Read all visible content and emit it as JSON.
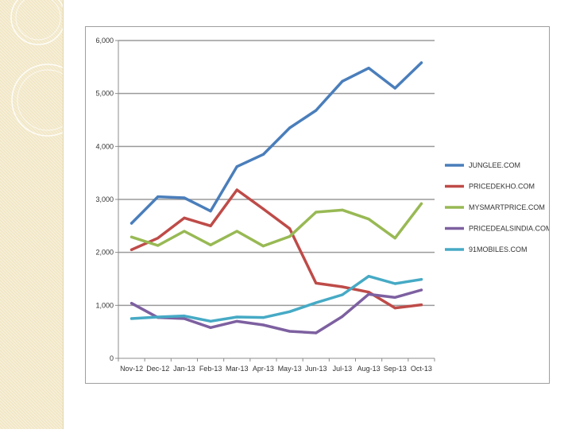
{
  "colors": {
    "junglee": "#4a7ebb",
    "pricedekho": "#be4b48",
    "mysmartprice": "#98b954",
    "pricedealsindia": "#7d60a0",
    "91mobiles": "#46aac5"
  },
  "chart_data": {
    "type": "line",
    "title": "",
    "xlabel": "",
    "ylabel": "",
    "ylim": [
      0,
      6000
    ],
    "yticks": [
      0,
      1000,
      2000,
      3000,
      4000,
      5000,
      6000
    ],
    "ytick_labels": [
      "0",
      "1,000",
      "2,000",
      "3,000",
      "4,000",
      "5,000",
      "6,000"
    ],
    "grid": true,
    "legend_position": "right",
    "categories": [
      "Nov-12",
      "Dec-12",
      "Jan-13",
      "Feb-13",
      "Mar-13",
      "Apr-13",
      "May-13",
      "Jun-13",
      "Jul-13",
      "Aug-13",
      "Sep-13",
      "Oct-13"
    ],
    "series": [
      {
        "name": "JUNGLEE.COM",
        "color": "#4a7ebb",
        "values": [
          2550,
          3050,
          3030,
          2780,
          3620,
          3850,
          4350,
          4680,
          5230,
          5480,
          5100,
          5580
        ]
      },
      {
        "name": "PRICEDEKHO.COM",
        "color": "#be4b48",
        "values": [
          2050,
          2270,
          2650,
          2500,
          3180,
          2820,
          2450,
          1420,
          1350,
          1250,
          950,
          1010
        ]
      },
      {
        "name": "MYSMARTPRICE.COM",
        "color": "#98b954",
        "values": [
          2290,
          2130,
          2400,
          2140,
          2400,
          2120,
          2300,
          2760,
          2800,
          2630,
          2270,
          2920
        ]
      },
      {
        "name": "PRICEDEALSINDIA.COM",
        "color": "#7d60a0",
        "values": [
          1040,
          770,
          750,
          580,
          700,
          630,
          510,
          480,
          790,
          1210,
          1150,
          1290
        ]
      },
      {
        "name": "91MOBILES.COM",
        "color": "#46aac5",
        "values": [
          750,
          780,
          800,
          700,
          780,
          770,
          880,
          1050,
          1200,
          1550,
          1410,
          1490
        ]
      }
    ]
  }
}
